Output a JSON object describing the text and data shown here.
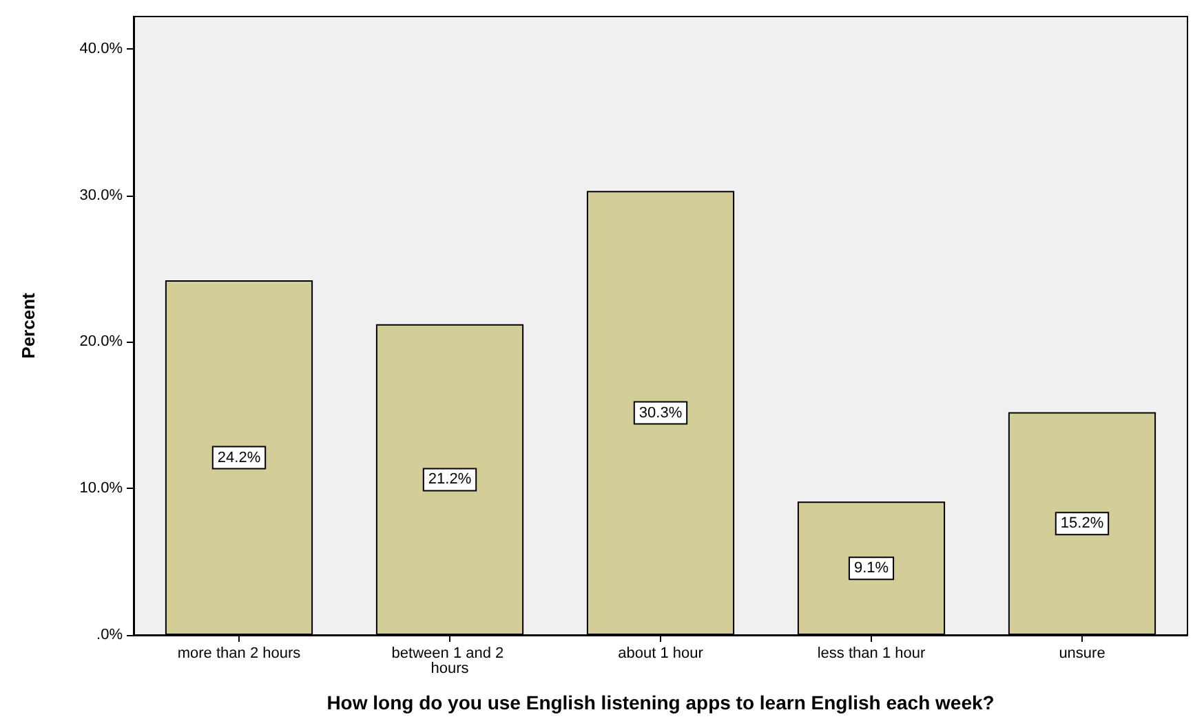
{
  "chart_data": {
    "type": "bar",
    "xlabel": "How long do you use English listening apps to learn English each week?",
    "ylabel": "Percent",
    "categories": [
      "more than 2 hours",
      "between 1 and 2 hours",
      "about 1 hour",
      "less than 1 hour",
      "unsure"
    ],
    "values": [
      24.2,
      21.2,
      30.3,
      9.1,
      15.2
    ],
    "value_labels": [
      "24.2%",
      "21.2%",
      "30.3%",
      "9.1%",
      "15.2%"
    ],
    "color": "#d3ce97",
    "ylim": [
      0,
      42.2
    ],
    "yticks": [
      {
        "value": 0,
        "label": ".0%"
      },
      {
        "value": 10,
        "label": "10.0%"
      },
      {
        "value": 20,
        "label": "20.0%"
      },
      {
        "value": 30,
        "label": "30.0%"
      },
      {
        "value": 40,
        "label": "40.0%"
      }
    ],
    "grid": false
  }
}
